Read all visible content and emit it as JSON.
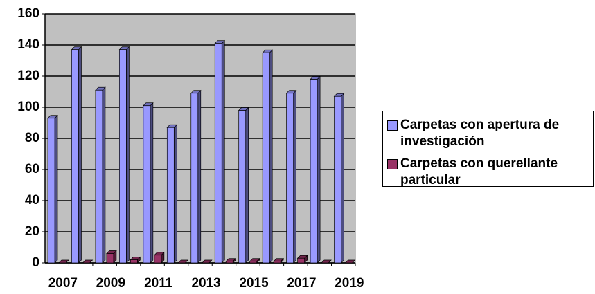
{
  "chart_data": {
    "type": "bar",
    "categories": [
      "2007",
      null,
      "2009",
      null,
      "2011",
      null,
      "2013",
      null,
      "2015",
      null,
      "2017",
      null,
      "2019"
    ],
    "series": [
      {
        "name": "Carpetas con apertura de investigación",
        "color": "#9999ff",
        "values": [
          93,
          137,
          111,
          137,
          101,
          87,
          109,
          141,
          98,
          135,
          109,
          118,
          107
        ]
      },
      {
        "name": "Carpetas con querellante particular",
        "color": "#993366",
        "values": [
          0,
          0,
          6,
          2,
          5,
          0,
          0,
          1,
          1,
          1,
          3,
          0,
          0
        ]
      }
    ],
    "ylim": [
      0,
      160
    ],
    "yticks": [
      0,
      20,
      40,
      60,
      80,
      100,
      120,
      140,
      160
    ],
    "grid": true,
    "legend": "right"
  }
}
